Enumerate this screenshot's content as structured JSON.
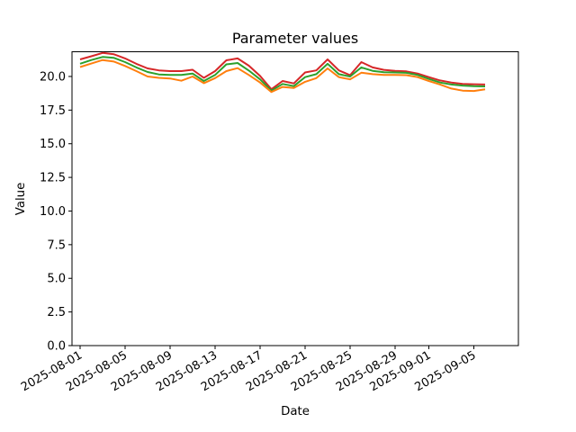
{
  "figure": {
    "background": "#ffffff",
    "plot_border_color": "#000000",
    "text_color": "#000000"
  },
  "chart_data": {
    "type": "line",
    "title": "Parameter values",
    "xlabel": "Date",
    "ylabel": "Value",
    "grid": false,
    "legend": "none",
    "ylim": [
      0.0,
      21.8
    ],
    "x": [
      "2025-08-01",
      "2025-08-02",
      "2025-08-03",
      "2025-08-04",
      "2025-08-05",
      "2025-08-06",
      "2025-08-07",
      "2025-08-08",
      "2025-08-09",
      "2025-08-10",
      "2025-08-11",
      "2025-08-12",
      "2025-08-13",
      "2025-08-14",
      "2025-08-15",
      "2025-08-16",
      "2025-08-17",
      "2025-08-18",
      "2025-08-19",
      "2025-08-20",
      "2025-08-21",
      "2025-08-22",
      "2025-08-23",
      "2025-08-24",
      "2025-08-25",
      "2025-08-26",
      "2025-08-27",
      "2025-08-28",
      "2025-08-29",
      "2025-08-30",
      "2025-08-31",
      "2025-09-01",
      "2025-09-02",
      "2025-09-03",
      "2025-09-04",
      "2025-09-05",
      "2025-09-06"
    ],
    "series": [
      {
        "color": "#d62728",
        "values": [
          21.27,
          21.5,
          21.75,
          21.65,
          21.34,
          20.94,
          20.6,
          20.45,
          20.4,
          20.4,
          20.5,
          19.9,
          20.4,
          21.2,
          21.34,
          20.8,
          20.04,
          19.05,
          19.66,
          19.48,
          20.3,
          20.45,
          21.27,
          20.45,
          20.1,
          21.07,
          20.67,
          20.49,
          20.42,
          20.38,
          20.22,
          19.95,
          19.7,
          19.55,
          19.45,
          19.42,
          19.4
        ]
      },
      {
        "color": "#2ca02c",
        "values": [
          20.95,
          21.22,
          21.45,
          21.38,
          21.07,
          20.67,
          20.33,
          20.15,
          20.11,
          20.11,
          20.22,
          19.66,
          20.11,
          20.9,
          21.0,
          20.44,
          19.78,
          18.95,
          19.44,
          19.28,
          19.95,
          20.17,
          20.94,
          20.17,
          20.0,
          20.67,
          20.42,
          20.32,
          20.3,
          20.27,
          20.11,
          19.82,
          19.55,
          19.4,
          19.32,
          19.28,
          19.26
        ]
      },
      {
        "color": "#ff7f0e",
        "values": [
          20.7,
          20.96,
          21.22,
          21.11,
          20.78,
          20.4,
          20.0,
          19.9,
          19.85,
          19.68,
          20.0,
          19.5,
          19.88,
          20.4,
          20.62,
          20.11,
          19.55,
          18.85,
          19.22,
          19.15,
          19.6,
          19.88,
          20.6,
          19.95,
          19.78,
          20.28,
          20.17,
          20.12,
          20.12,
          20.1,
          19.95,
          19.66,
          19.4,
          19.1,
          18.95,
          18.92,
          19.05
        ]
      }
    ],
    "xticks": [
      {
        "label": "2025-08-01",
        "day_offset": 0
      },
      {
        "label": "2025-08-05",
        "day_offset": 4
      },
      {
        "label": "2025-08-09",
        "day_offset": 8
      },
      {
        "label": "2025-08-13",
        "day_offset": 12
      },
      {
        "label": "2025-08-17",
        "day_offset": 16
      },
      {
        "label": "2025-08-21",
        "day_offset": 20
      },
      {
        "label": "2025-08-25",
        "day_offset": 24
      },
      {
        "label": "2025-08-29",
        "day_offset": 28
      },
      {
        "label": "2025-09-01",
        "day_offset": 31
      },
      {
        "label": "2025-09-05",
        "day_offset": 35
      }
    ],
    "yticks": [
      {
        "label": "0.0",
        "value": 0.0
      },
      {
        "label": "2.5",
        "value": 2.5
      },
      {
        "label": "5.0",
        "value": 5.0
      },
      {
        "label": "7.5",
        "value": 7.5
      },
      {
        "label": "10.0",
        "value": 10.0
      },
      {
        "label": "12.5",
        "value": 12.5
      },
      {
        "label": "15.0",
        "value": 15.0
      },
      {
        "label": "17.5",
        "value": 17.5
      },
      {
        "label": "20.0",
        "value": 20.0
      }
    ]
  }
}
